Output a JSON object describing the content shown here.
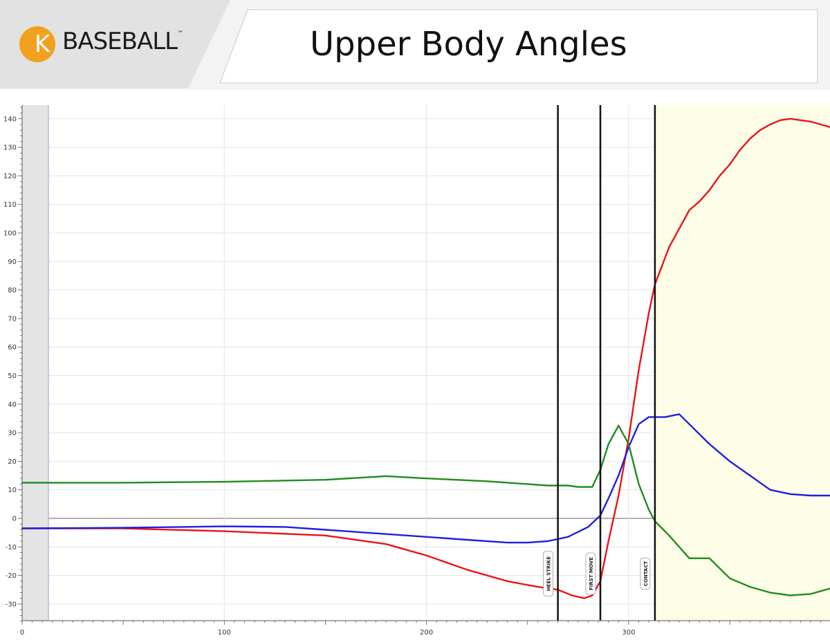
{
  "header": {
    "logo_letter": "K",
    "logo_text": "BASEBALL",
    "logo_tm": "™",
    "title": "Upper Body Angles",
    "logo_color": "#f2a11f"
  },
  "chart_data": {
    "type": "line",
    "title": "Upper Body Angles",
    "xlabel": "",
    "ylabel": "",
    "xlim": [
      0,
      400
    ],
    "ylim": [
      -37,
      145
    ],
    "x_ticks": [
      0,
      100,
      200,
      300
    ],
    "y_ticks": [
      -30,
      -20,
      -10,
      0,
      10,
      20,
      30,
      40,
      50,
      60,
      70,
      80,
      90,
      100,
      110,
      120,
      130,
      140
    ],
    "grid": true,
    "legend": "none",
    "shaded_start_region": [
      0,
      13
    ],
    "highlight_region": [
      313,
      400
    ],
    "events": [
      {
        "label": "HEEL STRIKE",
        "x": 265
      },
      {
        "label": "FIRST MOVE",
        "x": 286
      },
      {
        "label": "CONTACT",
        "x": 313
      }
    ],
    "series": [
      {
        "color": "#e8141b",
        "x": [
          0,
          50,
          100,
          150,
          180,
          200,
          220,
          240,
          255,
          265,
          272,
          278,
          282,
          286,
          290,
          295,
          300,
          305,
          310,
          313,
          320,
          330,
          335,
          340,
          345,
          350,
          355,
          360,
          365,
          370,
          375,
          380,
          385,
          390,
          400
        ],
        "y": [
          -3.5,
          -3.5,
          -4.5,
          -6,
          -9,
          -13,
          -18,
          -22,
          -24,
          -25,
          -27,
          -28,
          -27,
          -22,
          -8,
          8,
          28,
          52,
          72,
          82,
          95,
          108,
          111,
          115,
          120,
          124,
          129,
          133,
          136,
          138,
          139.5,
          140,
          139.5,
          139,
          137
        ]
      },
      {
        "color": "#1f1fe0",
        "x": [
          0,
          50,
          100,
          130,
          150,
          180,
          200,
          220,
          240,
          250,
          260,
          270,
          280,
          286,
          290,
          295,
          300,
          305,
          310,
          313,
          318,
          325,
          330,
          340,
          350,
          360,
          370,
          380,
          390,
          400
        ],
        "y": [
          -3.5,
          -3.3,
          -2.8,
          -3,
          -4,
          -5.5,
          -6.5,
          -7.5,
          -8.5,
          -8.5,
          -8,
          -6.5,
          -3,
          1,
          7,
          15,
          25,
          33,
          35.5,
          35.5,
          35.5,
          36.5,
          33,
          26,
          20,
          15,
          10,
          8.5,
          8,
          8
        ]
      },
      {
        "color": "#1f8b1f",
        "x": [
          0,
          50,
          100,
          150,
          180,
          200,
          230,
          250,
          260,
          270,
          275,
          282,
          286,
          290,
          295,
          300,
          305,
          310,
          313,
          320,
          330,
          340,
          350,
          360,
          370,
          380,
          390,
          400
        ],
        "y": [
          12.5,
          12.5,
          12.8,
          13.5,
          14.8,
          14,
          13,
          12,
          11.5,
          11.5,
          11,
          11,
          17,
          26,
          32.5,
          26,
          12,
          3,
          -1,
          -6,
          -14,
          -14,
          -21,
          -24,
          -26,
          -27,
          -26.5,
          -24.5
        ]
      }
    ]
  }
}
